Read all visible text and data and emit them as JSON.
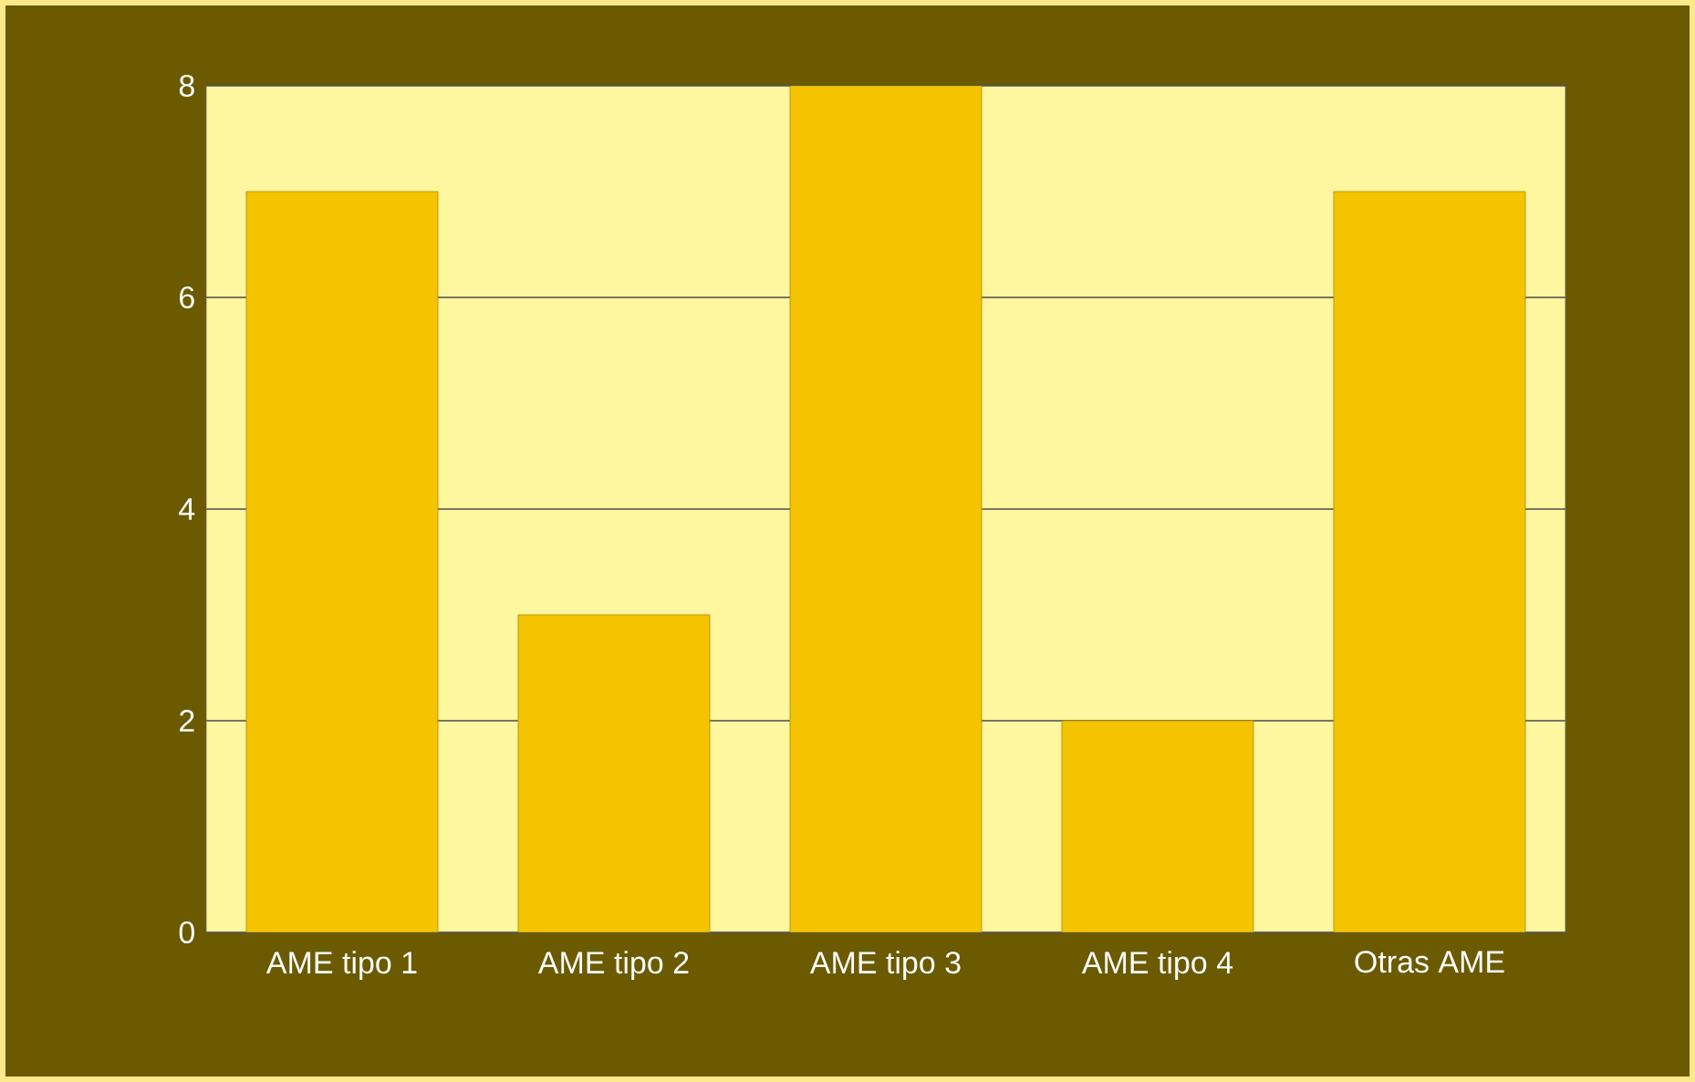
{
  "chart_data": {
    "type": "bar",
    "categories": [
      "AME tipo 1",
      "AME tipo 2",
      "AME tipo 3",
      "AME tipo 4",
      "Otras AME"
    ],
    "values": [
      7,
      3,
      8,
      2,
      7
    ],
    "color": "#f5c400",
    "ylim": [
      0,
      8
    ],
    "yticks": [
      0,
      2,
      4,
      6,
      8
    ],
    "grid": "y"
  }
}
